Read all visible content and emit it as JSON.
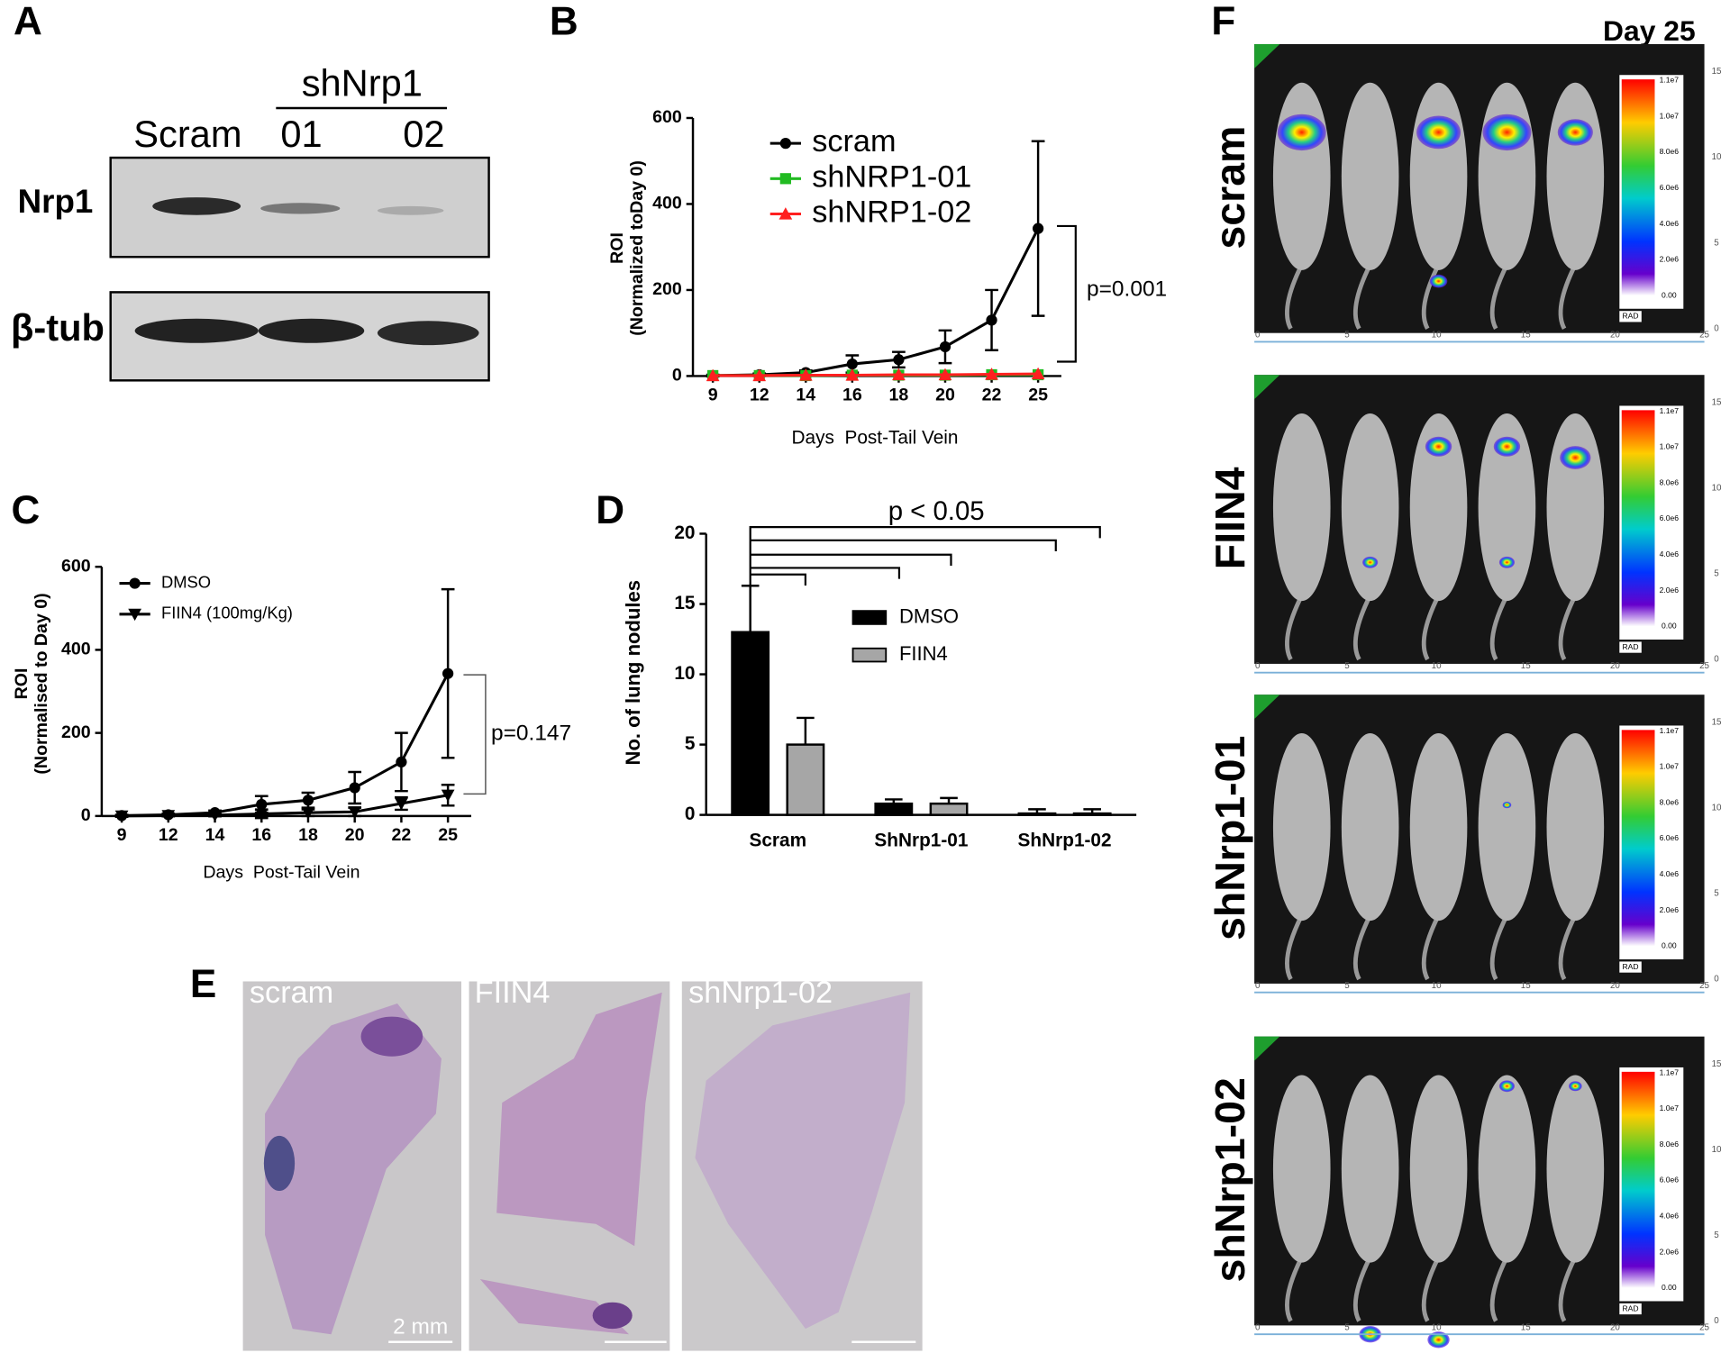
{
  "panel_labels": [
    "A",
    "B",
    "C",
    "D",
    "E",
    "F"
  ],
  "blot": {
    "group": "shNrp1",
    "lanes": [
      "Scram",
      "01",
      "02"
    ],
    "rows": [
      "Nrp1",
      "β-tub"
    ]
  },
  "chart_data": [
    {
      "type": "line",
      "ylabel": [
        "ROI",
        "(Normalized toDay 0)"
      ],
      "xlabel": "Days  Post-Tail Vein",
      "categories": [
        "9",
        "12",
        "14",
        "16",
        "18",
        "20",
        "22",
        "25"
      ],
      "ylim": [
        0,
        600
      ],
      "yticks": [
        0,
        200,
        400,
        600
      ],
      "series": [
        {
          "name": "scram",
          "color": "#000000",
          "marker": "circle",
          "values": [
            1,
            3,
            8,
            28,
            38,
            68,
            130,
            343
          ],
          "errors": [
            2,
            3,
            5,
            20,
            18,
            38,
            70,
            203
          ]
        },
        {
          "name": "shNRP1-01",
          "color": "#22bb22",
          "marker": "square",
          "values": [
            1,
            1,
            1,
            2,
            2,
            2,
            3,
            3
          ]
        },
        {
          "name": "shNRP1-02",
          "color": "#ff2020",
          "marker": "triangle",
          "values": [
            1,
            1,
            2,
            2,
            3,
            3,
            4,
            5
          ]
        }
      ],
      "annotation": "p=0.001"
    },
    {
      "type": "line",
      "ylabel": [
        "ROI",
        "(Normalised to Day 0)"
      ],
      "xlabel": "Days  Post-Tail Vein",
      "categories": [
        "9",
        "12",
        "14",
        "16",
        "18",
        "20",
        "22",
        "25"
      ],
      "ylim": [
        0,
        600
      ],
      "yticks": [
        0,
        200,
        400,
        600
      ],
      "series": [
        {
          "name": "DMSO",
          "color": "#000000",
          "marker": "circle",
          "values": [
            1,
            3,
            8,
            28,
            38,
            68,
            130,
            343
          ],
          "errors": [
            2,
            3,
            5,
            20,
            18,
            38,
            70,
            203
          ]
        },
        {
          "name": "FIIN4 (100mg/Kg)",
          "color": "#000000",
          "marker": "triangle-down",
          "values": [
            0,
            1,
            2,
            5,
            8,
            10,
            30,
            50
          ],
          "errors": [
            2,
            2,
            3,
            10,
            8,
            10,
            15,
            25
          ]
        }
      ],
      "annotation": "p=0.147"
    },
    {
      "type": "bar",
      "ylabel": "No. of lung nodules",
      "categories": [
        "Scram",
        "ShNrp1-01",
        "ShNrp1-02"
      ],
      "ylim": [
        0,
        20
      ],
      "yticks": [
        0,
        5,
        10,
        15,
        20
      ],
      "series": [
        {
          "name": "DMSO",
          "color": "#000000",
          "values": [
            13,
            0.8,
            0.1
          ],
          "errors": [
            3.3,
            0.3,
            0.3
          ]
        },
        {
          "name": "FIIN4",
          "color": "#a6a6a6",
          "values": [
            5,
            0.8,
            0.1
          ],
          "errors": [
            1.9,
            0.4,
            0.3
          ]
        }
      ],
      "annotation": "p < 0.05"
    }
  ],
  "histology": {
    "panels": [
      "scram",
      "FIIN4",
      "shNrp1-02"
    ],
    "scale_bar": "2 mm"
  },
  "imaging": {
    "title": "Day 25",
    "rows": [
      "scram",
      "FIIN4",
      "shNrp1-01",
      "shNrp1-02"
    ],
    "colorbar": [
      "1.1e7",
      "1.0e7",
      "8.0e6",
      "6.0e6",
      "4.0e6",
      "2.0e6",
      "0.00"
    ],
    "colorbar_unit": "RAD",
    "ruler_x": [
      0,
      5,
      10,
      15,
      20,
      25
    ],
    "ruler_y": [
      0,
      5,
      10,
      15
    ]
  }
}
